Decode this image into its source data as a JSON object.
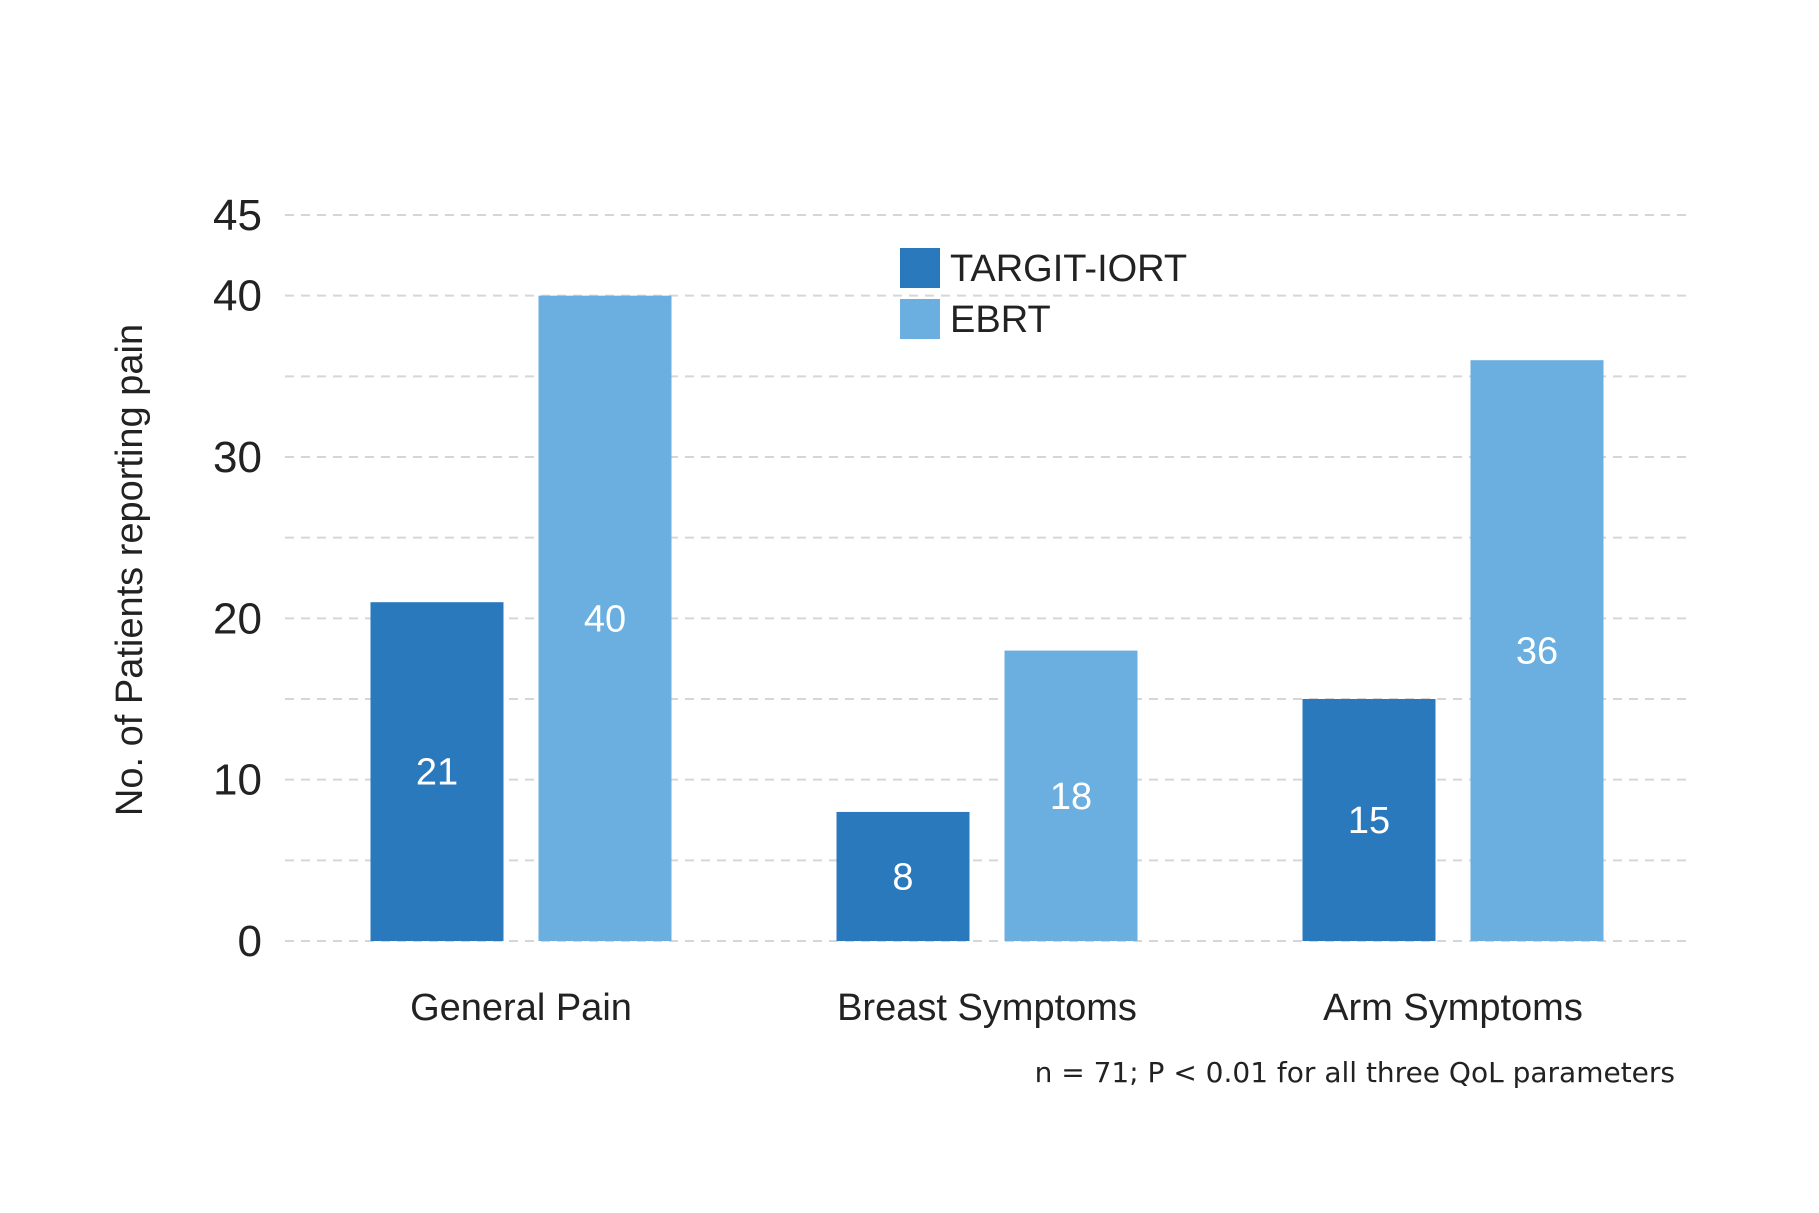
{
  "chart_data": {
    "type": "bar",
    "categories": [
      "General Pain",
      "Breast Symptoms",
      "Arm Symptoms"
    ],
    "series": [
      {
        "name": "TARGIT-IORT",
        "color": "#2b79bd",
        "values": [
          21,
          8,
          15
        ]
      },
      {
        "name": "EBRT",
        "color": "#6aafdf",
        "values": [
          40,
          18,
          36
        ]
      }
    ],
    "xlabel": "",
    "ylabel": "No. of Patients reporting pain",
    "ylim": [
      0,
      45
    ],
    "yticks": [
      0,
      10,
      20,
      30,
      40,
      45
    ],
    "grid": true,
    "gridlines": [
      5,
      10,
      15,
      20,
      25,
      30,
      35,
      40,
      45
    ],
    "legend_position": "top-center",
    "data_labels": [
      [
        "21",
        "8",
        "15"
      ],
      [
        "40",
        "18",
        "36"
      ]
    ],
    "footnote": "n = 71; P < 0.01 for all three QoL parameters"
  }
}
